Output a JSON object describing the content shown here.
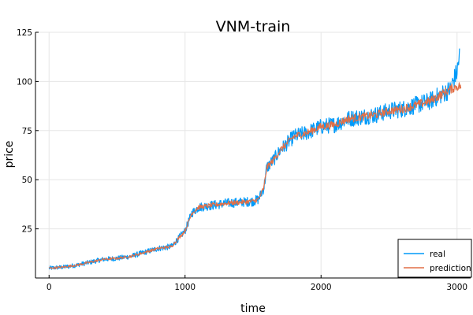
{
  "chart_data": {
    "type": "line",
    "title": "VNM-train",
    "xlabel": "time",
    "ylabel": "price",
    "xlim": [
      -100,
      3100
    ],
    "ylim": [
      0,
      125
    ],
    "xticks": [
      0,
      1000,
      2000,
      3000
    ],
    "yticks": [
      25,
      50,
      75,
      100,
      125
    ],
    "grid": true,
    "legend": {
      "placement": "bottom-right"
    },
    "series": [
      {
        "name": "real",
        "color": "#009af9",
        "x": [
          0,
          100,
          200,
          300,
          400,
          500,
          600,
          700,
          800,
          900,
          1000,
          1050,
          1100,
          1200,
          1300,
          1400,
          1500,
          1540,
          1580,
          1600,
          1650,
          1700,
          1800,
          1900,
          2000,
          2100,
          2200,
          2300,
          2400,
          2500,
          2600,
          2700,
          2800,
          2900,
          2950,
          3000,
          3020
        ],
        "y": [
          5,
          5.5,
          6.5,
          8,
          9.5,
          10,
          11,
          13,
          15,
          16,
          24,
          33,
          36,
          37,
          38,
          38.5,
          39,
          40,
          46,
          56,
          60,
          65,
          72,
          74,
          77,
          78,
          81,
          82,
          83,
          85,
          86,
          88,
          90,
          94,
          96,
          105,
          114
        ],
        "noise": 2.5
      },
      {
        "name": "prediction",
        "color": "#e26f46",
        "x": [
          0,
          100,
          200,
          300,
          400,
          500,
          600,
          700,
          800,
          900,
          1000,
          1050,
          1100,
          1200,
          1300,
          1400,
          1500,
          1540,
          1580,
          1600,
          1650,
          1700,
          1800,
          1900,
          2000,
          2100,
          2200,
          2300,
          2400,
          2500,
          2600,
          2700,
          2800,
          2900,
          2950,
          3000,
          3030
        ],
        "y": [
          5,
          5.5,
          6.5,
          8,
          9.5,
          10,
          11,
          13,
          15,
          16,
          24,
          33,
          36,
          37,
          38,
          38.5,
          39,
          40,
          46,
          56,
          60,
          65,
          72,
          74,
          77,
          78,
          81,
          82,
          83,
          85,
          86,
          88,
          90,
          94,
          96,
          97.5,
          97.5
        ],
        "noise": 1.2
      }
    ]
  }
}
